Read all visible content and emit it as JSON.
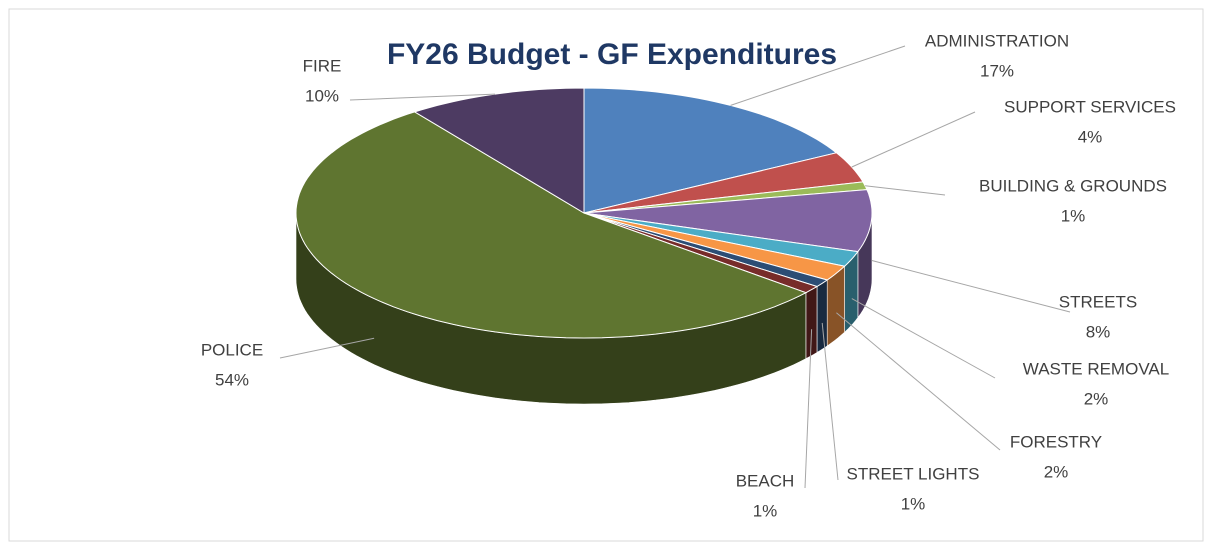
{
  "chart_data": {
    "type": "pie",
    "title": "FY26 Budget - GF Expenditures",
    "categories": [
      "ADMINISTRATION",
      "SUPPORT SERVICES",
      "BUILDING & GROUNDS",
      "STREETS",
      "WASTE REMOVAL",
      "FORESTRY",
      "STREET LIGHTS",
      "BEACH",
      "POLICE",
      "FIRE"
    ],
    "values": [
      17,
      4,
      1,
      8,
      2,
      2,
      1,
      1,
      54,
      10
    ],
    "value_labels": [
      "17%",
      "4%",
      "1%",
      "8%",
      "2%",
      "2%",
      "1%",
      "1%",
      "54%",
      "10%"
    ],
    "colors": [
      "#4f81bd",
      "#c0504d",
      "#9bbb59",
      "#8064a2",
      "#4bacc6",
      "#f79646",
      "#2c4d75",
      "#772c2a",
      "#5f7530",
      "#4d3b62"
    ]
  }
}
